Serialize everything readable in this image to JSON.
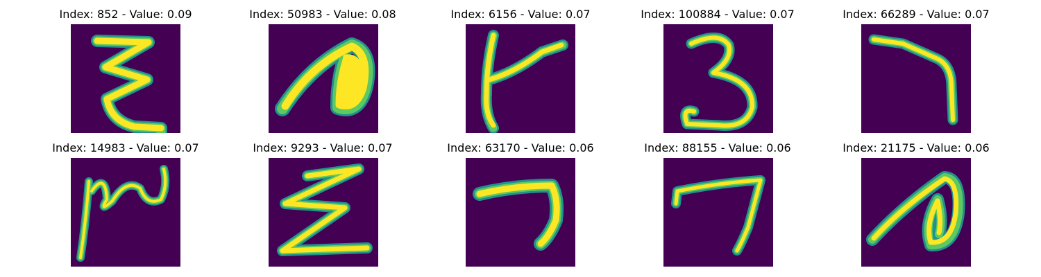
{
  "colors": {
    "background": "#440154",
    "stroke_outer": "#21918c",
    "stroke_mid": "#5ec962",
    "stroke_core": "#fde725"
  },
  "panels": [
    {
      "title": "Index: 852 - Value: 0.09"
    },
    {
      "title": "Index: 50983 - Value: 0.08"
    },
    {
      "title": "Index: 6156 - Value: 0.07"
    },
    {
      "title": "Index: 100884 - Value: 0.07"
    },
    {
      "title": "Index: 66289 - Value: 0.07"
    },
    {
      "title": "Index: 14983 - Value: 0.07"
    },
    {
      "title": "Index: 9293 - Value: 0.07"
    },
    {
      "title": "Index: 63170 - Value: 0.06"
    },
    {
      "title": "Index: 88155 - Value: 0.06"
    },
    {
      "title": "Index: 21175 - Value: 0.06"
    }
  ]
}
